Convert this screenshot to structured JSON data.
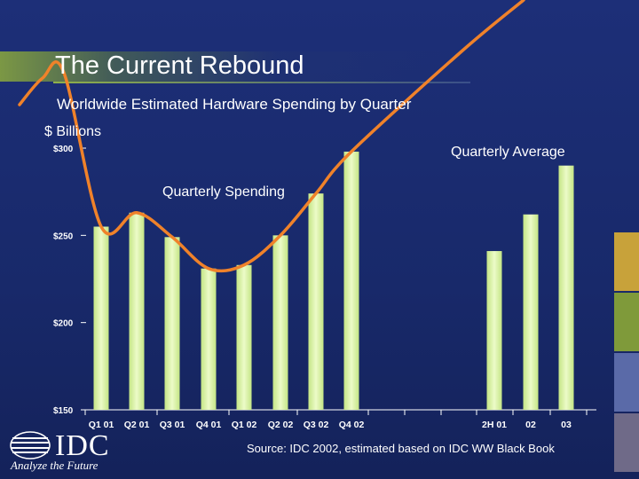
{
  "slide": {
    "title": "The Current Rebound",
    "source": "Source: IDC 2002, estimated based on IDC WW Black Book",
    "logo_text": "IDC",
    "logo_tagline": "Analyze the Future",
    "colors": {
      "background": "#1b2a6b",
      "bar": "#d9f2a6",
      "curve": "#f0822a",
      "text": "#ffffff"
    }
  },
  "chart_data": {
    "type": "bar",
    "title": "Worldwide Estimated Hardware Spending by Quarter",
    "ylabel": "$ Billions",
    "ylim": [
      150,
      300
    ],
    "yticks": [
      {
        "value": 300,
        "label": "$300"
      },
      {
        "value": 250,
        "label": "$250"
      },
      {
        "value": 200,
        "label": "$200"
      },
      {
        "value": 150,
        "label": "$150"
      }
    ],
    "groups": [
      {
        "name": "Quarterly Spending",
        "categories": [
          "Q1 01",
          "Q2 01",
          "Q3 01",
          "Q4 01",
          "Q1 02",
          "Q2 02",
          "Q3 02",
          "Q4 02"
        ],
        "values": [
          255,
          263,
          249,
          231,
          233,
          250,
          274,
          298
        ]
      },
      {
        "name": "Quarterly Average",
        "categories": [
          "2H 01",
          "02",
          "03"
        ],
        "values": [
          241,
          262,
          290
        ]
      }
    ],
    "trend_curve": {
      "label": "Quarterly Spending",
      "color": "#f0822a"
    },
    "annotations": [
      "Quarterly Average",
      "Quarterly Spending"
    ]
  }
}
